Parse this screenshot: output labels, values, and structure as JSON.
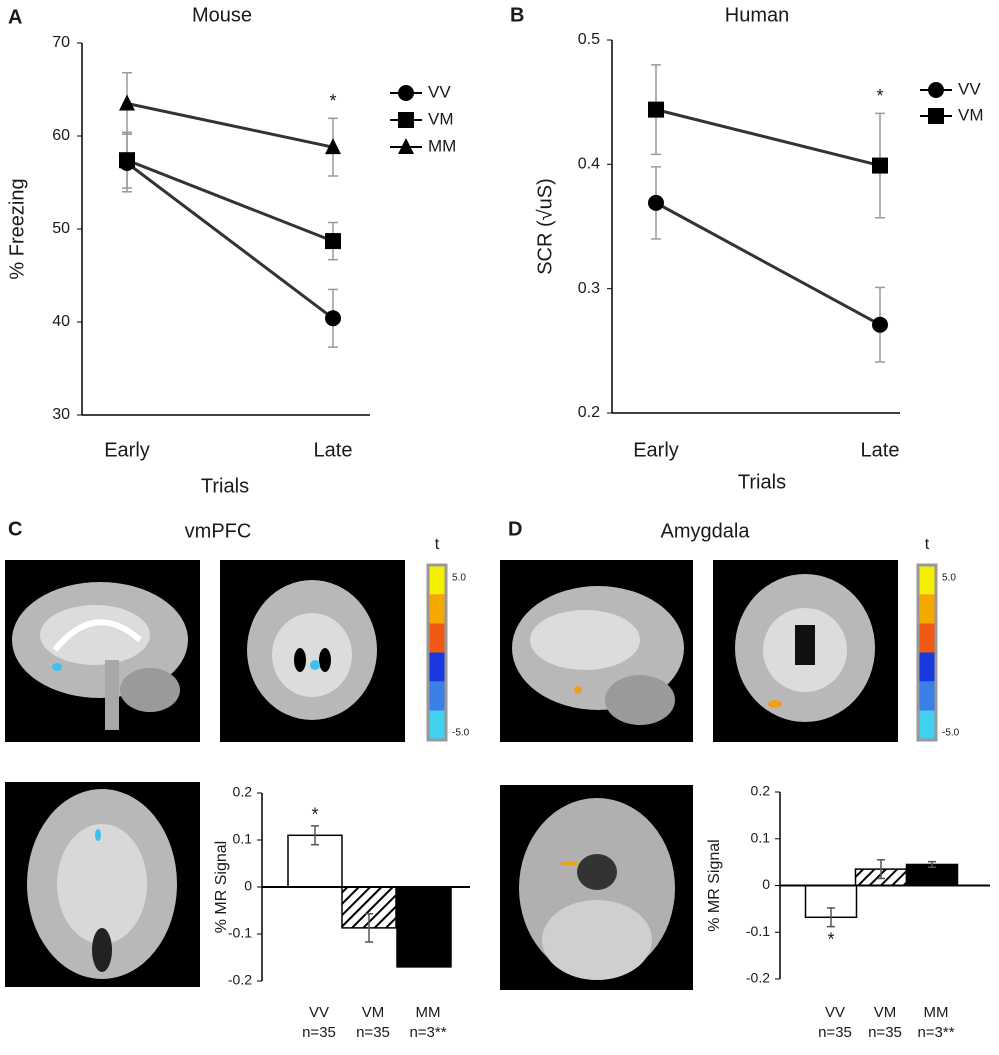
{
  "chart_data": [
    {
      "type": "line",
      "panel": "A",
      "title": "Mouse",
      "xlabel": "Trials",
      "ylabel": "% Freezing",
      "categories": [
        "Early",
        "Late"
      ],
      "ylim": [
        30,
        70
      ],
      "yticks": [
        30,
        40,
        50,
        60,
        70
      ],
      "notes": [
        null,
        "*"
      ],
      "series": [
        {
          "name": "VV",
          "marker": "circle",
          "color": "#000000",
          "values": [
            57.1,
            40.4
          ],
          "errors": [
            3.1,
            3.1
          ]
        },
        {
          "name": "VM",
          "marker": "square",
          "color": "#000000",
          "values": [
            57.4,
            48.7
          ],
          "errors": [
            3.0,
            2.0
          ]
        },
        {
          "name": "MM",
          "marker": "triangle",
          "color": "#000000",
          "values": [
            63.5,
            58.8
          ],
          "errors": [
            3.3,
            3.1
          ]
        }
      ]
    },
    {
      "type": "line",
      "panel": "B",
      "title": "Human",
      "xlabel": "Trials",
      "ylabel": "SCR (√uS)",
      "categories": [
        "Early",
        "Late"
      ],
      "ylim": [
        0.2,
        0.5
      ],
      "yticks": [
        0.2,
        0.3,
        0.4,
        0.5
      ],
      "notes": [
        null,
        "*"
      ],
      "series": [
        {
          "name": "VV",
          "marker": "circle",
          "color": "#000000",
          "values": [
            0.369,
            0.271
          ],
          "errors": [
            0.029,
            0.03
          ]
        },
        {
          "name": "VM",
          "marker": "square",
          "color": "#000000",
          "values": [
            0.444,
            0.399
          ],
          "errors": [
            0.036,
            0.042
          ]
        }
      ]
    },
    {
      "type": "bar",
      "panel": "C",
      "title": "vmPFC",
      "ylabel": "% MR Signal",
      "categories": [
        "VV",
        "VM",
        "MM"
      ],
      "counts": [
        "n=35",
        "n=35",
        "n=3**"
      ],
      "values": [
        0.11,
        -0.087,
        -0.17
      ],
      "errors": [
        0.02,
        0.03,
        null
      ],
      "patterns": [
        "none",
        "diagonal",
        "solid"
      ],
      "ylim": [
        -0.2,
        0.2
      ],
      "yticks": [
        -0.2,
        -0.1,
        0,
        0.1,
        0.2
      ],
      "notes": [
        "*",
        null,
        null
      ],
      "colorbar": {
        "title": "t",
        "colors": [
          "#f5f000",
          "#f5a800",
          "#f05a14",
          "#1838e0",
          "#3a80e8",
          "#40d0f0"
        ],
        "ticks": [
          {
            "value": 5,
            "label": "5.0"
          },
          {
            "value": -5,
            "label": "-5.0"
          }
        ]
      }
    },
    {
      "type": "bar",
      "panel": "D",
      "title": "Amygdala",
      "ylabel": "% MR Signal",
      "categories": [
        "VV",
        "VM",
        "MM"
      ],
      "counts": [
        "n=35",
        "n=35",
        "n=3**"
      ],
      "values": [
        -0.068,
        0.035,
        0.045
      ],
      "errors": [
        0.02,
        0.02,
        0.006
      ],
      "patterns": [
        "none",
        "diagonal",
        "solid"
      ],
      "ylim": [
        -0.2,
        0.2
      ],
      "yticks": [
        -0.2,
        -0.1,
        0,
        0.1,
        0.2
      ],
      "notes": [
        "*",
        null,
        null
      ],
      "colorbar": {
        "title": "t",
        "colors": [
          "#f5f000",
          "#f5a800",
          "#f05a14",
          "#1838e0",
          "#3a80e8",
          "#40d0f0"
        ],
        "ticks": [
          {
            "value": 5,
            "label": "5.0"
          },
          {
            "value": -5,
            "label": "-5.0"
          }
        ]
      }
    }
  ]
}
